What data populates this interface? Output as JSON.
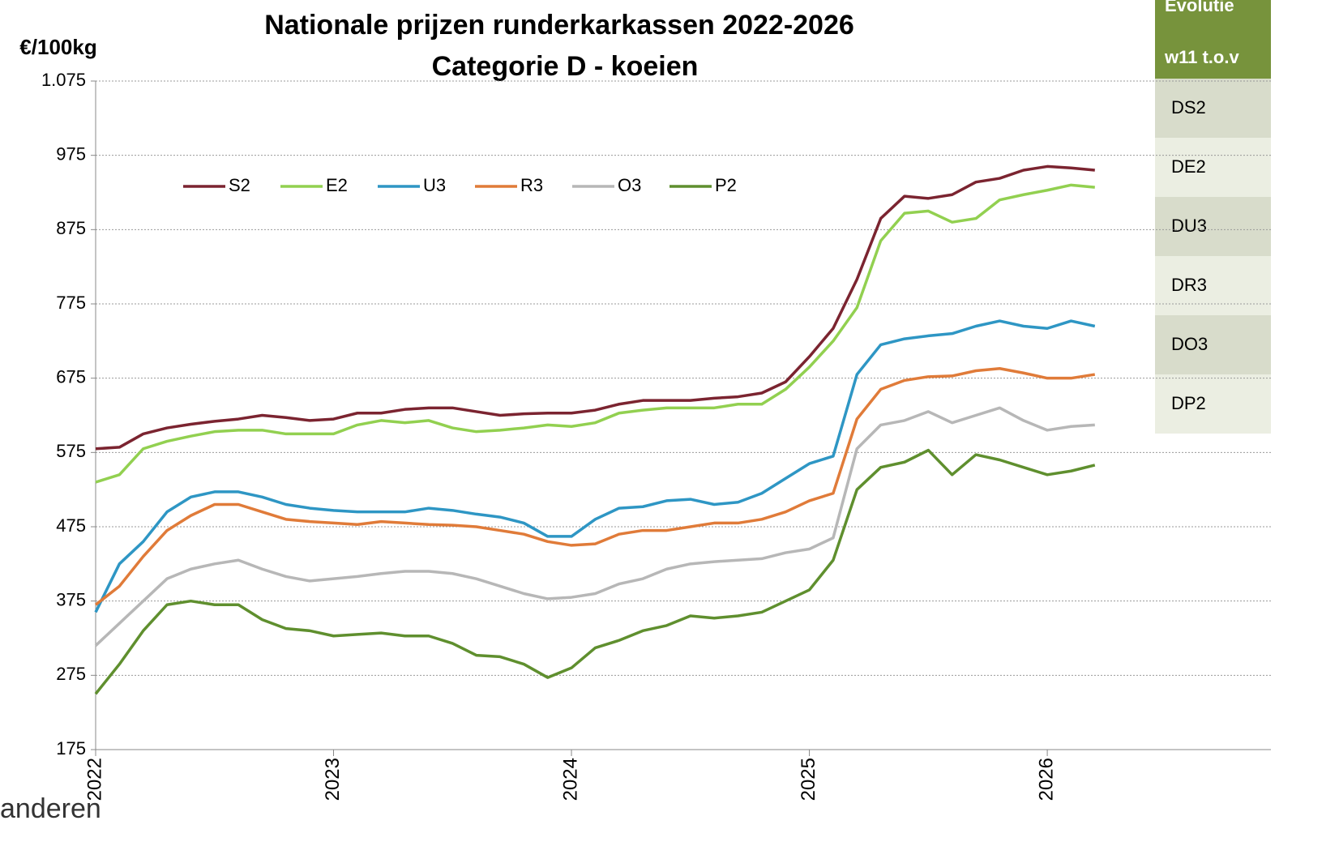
{
  "chart_data": {
    "type": "line",
    "title": "Nationale prijzen runderkarkassen 2022-2026",
    "subtitle": "Categorie D - koeien",
    "y_label": "€/100kg",
    "x": [
      2022,
      2022.1,
      2022.2,
      2022.3,
      2022.4,
      2022.5,
      2022.6,
      2022.7,
      2022.8,
      2022.9,
      2023,
      2023.1,
      2023.2,
      2023.3,
      2023.4,
      2023.5,
      2023.6,
      2023.7,
      2023.8,
      2023.9,
      2024,
      2024.1,
      2024.2,
      2024.3,
      2024.4,
      2024.5,
      2024.6,
      2024.7,
      2024.8,
      2024.9,
      2025,
      2025.1,
      2025.2,
      2025.3,
      2025.4,
      2025.5,
      2025.6,
      2025.7,
      2025.8,
      2025.9,
      2026,
      2026.1,
      2026.2
    ],
    "series": [
      {
        "name": "S2",
        "color": "#7b2430",
        "values": [
          580,
          582,
          600,
          608,
          613,
          617,
          620,
          625,
          622,
          618,
          620,
          628,
          628,
          633,
          635,
          635,
          630,
          625,
          627,
          628,
          628,
          632,
          640,
          645,
          645,
          645,
          648,
          650,
          655,
          670,
          704,
          742,
          808,
          890,
          920,
          917,
          922,
          939,
          944,
          955,
          960,
          958,
          955
        ]
      },
      {
        "name": "E2",
        "color": "#92d050",
        "values": [
          535,
          545,
          580,
          590,
          597,
          603,
          605,
          605,
          600,
          600,
          600,
          612,
          618,
          615,
          618,
          608,
          603,
          605,
          608,
          612,
          610,
          615,
          628,
          632,
          635,
          635,
          635,
          640,
          640,
          660,
          690,
          725,
          770,
          860,
          897,
          900,
          885,
          890,
          915,
          922,
          928,
          935,
          932
        ]
      },
      {
        "name": "U3",
        "color": "#2e96c4",
        "values": [
          360,
          425,
          455,
          495,
          515,
          522,
          522,
          515,
          505,
          500,
          497,
          495,
          495,
          495,
          500,
          497,
          492,
          488,
          480,
          462,
          462,
          485,
          500,
          502,
          510,
          512,
          505,
          508,
          520,
          540,
          560,
          570,
          680,
          720,
          728,
          732,
          735,
          745,
          752,
          745,
          742,
          752,
          745
        ]
      },
      {
        "name": "R3",
        "color": "#e07b39",
        "values": [
          370,
          395,
          435,
          470,
          490,
          505,
          505,
          495,
          485,
          482,
          480,
          478,
          482,
          480,
          478,
          477,
          475,
          470,
          465,
          455,
          450,
          452,
          465,
          470,
          470,
          475,
          480,
          480,
          485,
          495,
          510,
          520,
          620,
          660,
          672,
          677,
          678,
          685,
          688,
          682,
          675,
          675,
          680
        ]
      },
      {
        "name": "O3",
        "color": "#b7b7b7",
        "values": [
          315,
          345,
          375,
          405,
          418,
          425,
          430,
          418,
          408,
          402,
          405,
          408,
          412,
          415,
          415,
          412,
          405,
          395,
          385,
          378,
          380,
          385,
          398,
          405,
          418,
          425,
          428,
          430,
          432,
          440,
          445,
          460,
          580,
          612,
          618,
          630,
          615,
          625,
          635,
          618,
          605,
          610,
          612
        ]
      },
      {
        "name": "P2",
        "color": "#5f8f2e",
        "values": [
          250,
          290,
          335,
          370,
          375,
          370,
          370,
          350,
          338,
          335,
          328,
          330,
          332,
          328,
          328,
          318,
          302,
          300,
          290,
          272,
          285,
          312,
          322,
          335,
          342,
          355,
          352,
          355,
          360,
          375,
          390,
          430,
          525,
          555,
          562,
          578,
          545,
          572,
          565,
          555,
          545,
          550,
          558
        ]
      }
    ],
    "xlim": [
      2022,
      2026.94
    ],
    "xticks": [
      2022,
      2023,
      2024,
      2025,
      2026
    ],
    "ylim": [
      175,
      1075
    ],
    "yticks": [
      175,
      275,
      375,
      475,
      575,
      675,
      775,
      875,
      975,
      {
        "value": 1075,
        "label": "1.075"
      }
    ],
    "grid": true,
    "legend": "top"
  },
  "table": {
    "header": [
      "Evolutie",
      "w11 t.o.v"
    ],
    "rows": [
      "DS2",
      "DE2",
      "DU3",
      "DR3",
      "DO3",
      "DP2"
    ]
  },
  "logo": "anderen"
}
